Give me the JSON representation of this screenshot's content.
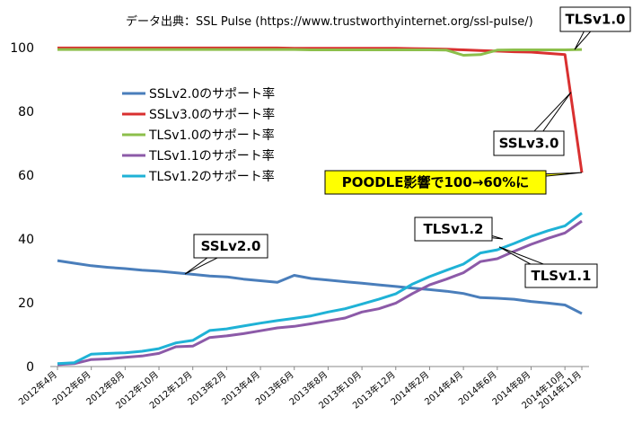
{
  "chart_data": {
    "type": "line",
    "title": "データ出典：SSL Pulse (https://www.trustworthyinternet.org/ssl-pulse/)",
    "xlabel": "",
    "ylabel": "",
    "ylim": [
      0,
      100
    ],
    "yticks": [
      "0",
      "20",
      "40",
      "60",
      "80",
      "100"
    ],
    "x": [
      "2012年4月",
      "2012年5月",
      "2012年6月",
      "2012年7月",
      "2012年8月",
      "2012年9月",
      "2012年10月",
      "2012年11月",
      "2012年12月",
      "2013年1月",
      "2013年2月",
      "2013年3月",
      "2013年4月",
      "2013年5月",
      "2013年6月",
      "2013年7月",
      "2013年8月",
      "2013年9月",
      "2013年10月",
      "2013年11月",
      "2013年12月",
      "2014年1月",
      "2014年2月",
      "2014年3月",
      "2014年4月",
      "2014年5月",
      "2014年6月",
      "2014年7月",
      "2014年8月",
      "2014年9月",
      "2014年10月",
      "2014年11月"
    ],
    "xtick_labels": [
      "2012年4月",
      "2012年6月",
      "2012年8月",
      "2012年10月",
      "2012年12月",
      "2013年2月",
      "2013年4月",
      "2013年6月",
      "2013年8月",
      "2013年10月",
      "2013年12月",
      "2014年2月",
      "2014年4月",
      "2014年6月",
      "2014年8月",
      "2014年10月",
      "2014年11月"
    ],
    "series": [
      {
        "name": "SSLv2.0のサポート率",
        "color": "#4a7ebb",
        "values": [
          33.2,
          32.4,
          31.6,
          31.1,
          30.7,
          30.2,
          29.9,
          29.4,
          28.9,
          28.4,
          28.1,
          27.4,
          26.9,
          26.4,
          28.6,
          27.6,
          27.1,
          26.6,
          26.1,
          25.6,
          25.1,
          24.6,
          24.1,
          23.6,
          22.9,
          21.6,
          21.4,
          21.1,
          20.4,
          19.9,
          19.3,
          16.6
        ]
      },
      {
        "name": "SSLv3.0のサポート率",
        "color": "#d93030",
        "values": [
          99.9,
          99.9,
          99.9,
          99.9,
          99.9,
          99.9,
          99.9,
          99.9,
          99.9,
          99.9,
          99.9,
          99.9,
          99.9,
          99.9,
          99.8,
          99.8,
          99.8,
          99.8,
          99.8,
          99.8,
          99.8,
          99.7,
          99.6,
          99.5,
          99.3,
          99.1,
          98.9,
          98.7,
          98.6,
          98.2,
          97.8,
          60.8
        ]
      },
      {
        "name": "TLSv1.0のサポート率",
        "color": "#8cbf4b",
        "values": [
          99.4,
          99.4,
          99.4,
          99.4,
          99.4,
          99.4,
          99.4,
          99.4,
          99.4,
          99.4,
          99.4,
          99.4,
          99.4,
          99.4,
          99.4,
          99.3,
          99.3,
          99.3,
          99.3,
          99.3,
          99.3,
          99.3,
          99.3,
          99.2,
          97.6,
          97.8,
          99.2,
          99.3,
          99.3,
          99.3,
          99.3,
          99.4
        ]
      },
      {
        "name": "TLSv1.1のサポート率",
        "color": "#8c5aa8",
        "values": [
          0.6,
          0.9,
          2.2,
          2.4,
          2.9,
          3.3,
          4.1,
          6.2,
          6.4,
          9.1,
          9.6,
          10.3,
          11.2,
          12.1,
          12.6,
          13.4,
          14.3,
          15.2,
          17.1,
          18.1,
          19.9,
          22.9,
          25.6,
          27.4,
          29.4,
          32.9,
          33.8,
          36.1,
          38.3,
          40.2,
          41.9,
          45.6
        ]
      },
      {
        "name": "TLSv1.2のサポート率",
        "color": "#1fb2d6",
        "values": [
          0.9,
          1.2,
          3.9,
          4.1,
          4.3,
          4.8,
          5.6,
          7.4,
          8.2,
          11.3,
          11.8,
          12.7,
          13.6,
          14.4,
          15.1,
          15.9,
          17.1,
          18.1,
          19.6,
          21.1,
          22.8,
          25.9,
          28.2,
          30.2,
          32.1,
          35.6,
          36.6,
          38.6,
          40.8,
          42.6,
          44.1,
          48.1
        ]
      }
    ],
    "legend_position": "left-middle",
    "grid": false,
    "annotations": [
      {
        "text": "TLSv1.0",
        "highlight": false
      },
      {
        "text": "SSLv3.0",
        "highlight": false
      },
      {
        "text": "POODLE影響で100→60%に",
        "highlight": true,
        "color": "#ffff00"
      },
      {
        "text": "TLSv1.2",
        "highlight": false
      },
      {
        "text": "TLSv1.1",
        "highlight": false
      },
      {
        "text": "SSLv2.0",
        "highlight": false
      }
    ]
  }
}
